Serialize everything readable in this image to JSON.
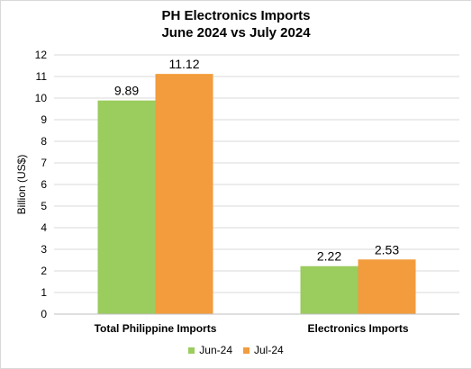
{
  "chart_data": {
    "type": "bar",
    "title": "PH Electronics Imports",
    "subtitle": "June 2024 vs July 2024",
    "xlabel": "",
    "ylabel": "Billion (US$)",
    "ylim": [
      0,
      12
    ],
    "yticks": [
      "0",
      "1",
      "2",
      "3",
      "4",
      "5",
      "6",
      "7",
      "8",
      "9",
      "10",
      "11",
      "12"
    ],
    "categories": [
      "Total Philippine Imports",
      "Electronics Imports"
    ],
    "series": [
      {
        "name": "Jun-24",
        "color": "#9bcc5e",
        "values": [
          9.89,
          2.22
        ],
        "labels": [
          "9.89",
          "2.22"
        ]
      },
      {
        "name": "Jul-24",
        "color": "#f29c3d",
        "values": [
          11.12,
          2.53
        ],
        "labels": [
          "11.12",
          "2.53"
        ]
      }
    ],
    "grid": true,
    "legend": "bottom"
  }
}
